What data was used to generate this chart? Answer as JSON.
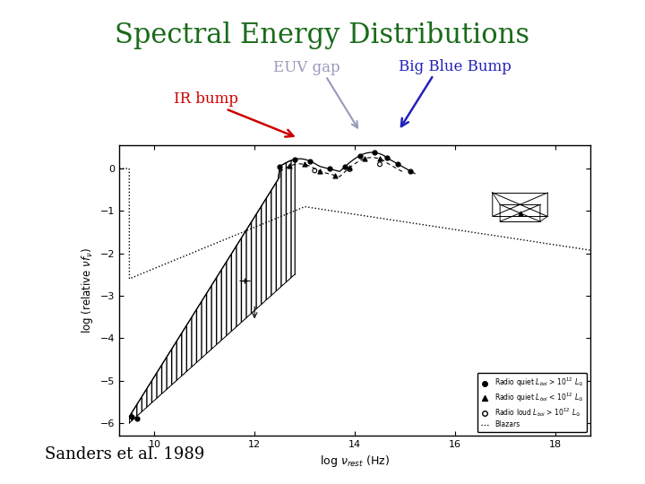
{
  "title": "Spectral Energy Distributions",
  "title_color": "#1a6b1a",
  "title_fontsize": 22,
  "ir_bump_label": "IR bump",
  "ir_bump_color": "#cc0000",
  "euv_gap_label": "EUV gap",
  "euv_gap_color": "#9999bb",
  "big_blue_label": "Big Blue Bump",
  "big_blue_color": "#2222bb",
  "citation": "Sanders et al. 1989",
  "citation_color": "#000000",
  "xlabel": "log $\\nu_{rest}$ (Hz)",
  "ylabel": "log (relative $\\nu f_\\nu$)",
  "xlim": [
    9.3,
    18.7
  ],
  "ylim": [
    -6.3,
    0.55
  ],
  "xticks": [
    10,
    12,
    14,
    16,
    18
  ],
  "yticks": [
    -6,
    -5,
    -4,
    -3,
    -2,
    -1,
    0
  ],
  "bg_color": "#ffffff"
}
